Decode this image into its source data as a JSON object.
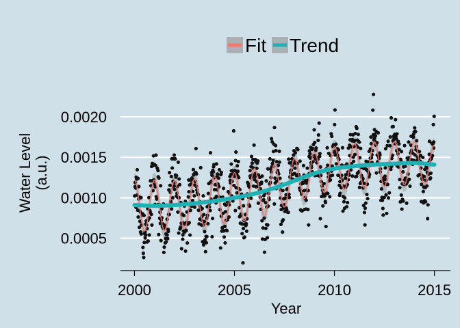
{
  "chart_data": {
    "type": "scatter",
    "xlabel": "Year",
    "ylabel_lines": [
      "Water Level",
      "(a.u.)"
    ],
    "xlim": [
      1999.3,
      2015.8
    ],
    "ylim": [
      0.0001,
      0.00243
    ],
    "xticks": [
      {
        "value": 2000,
        "label": "2000"
      },
      {
        "value": 2005,
        "label": "2005"
      },
      {
        "value": 2010,
        "label": "2010"
      },
      {
        "value": 2015,
        "label": "2015"
      }
    ],
    "yticks": [
      {
        "value": 0.0005,
        "label": "0.0005"
      },
      {
        "value": 0.001,
        "label": "0.0010"
      },
      {
        "value": 0.0015,
        "label": "0.0015"
      },
      {
        "value": 0.002,
        "label": "0.0020"
      }
    ],
    "grid": "horizontal",
    "legend": {
      "position": "top",
      "entries": [
        {
          "label": "Fit",
          "color": "#f8766d"
        },
        {
          "label": "Trend",
          "color": "#1fb1b3"
        }
      ]
    },
    "series": [
      {
        "name": "Trend",
        "color": "#1fb1b3",
        "x": [
          2000,
          2001,
          2002,
          2003,
          2004,
          2005,
          2006,
          2007,
          2008,
          2009,
          2010,
          2011,
          2012,
          2013,
          2014,
          2015
        ],
        "y": [
          0.00091,
          0.0009,
          0.00091,
          0.00093,
          0.00096,
          0.001,
          0.00105,
          0.00112,
          0.00121,
          0.0013,
          0.00136,
          0.00139,
          0.00141,
          0.00142,
          0.00143,
          0.00141
        ]
      },
      {
        "name": "Fit",
        "color": "#f8766d",
        "band_color": "#a8b0b4",
        "seasonal_amplitude": [
          0.00031,
          0.00032,
          0.0003,
          0.0003,
          0.0003,
          0.00031,
          0.00031,
          0.00029,
          0.00027,
          0.00026,
          0.00027,
          0.00028,
          0.00028,
          0.00027,
          0.00026,
          0.00024
        ],
        "seasonal_phase": 0.25,
        "band_halfwidth": 8e-05
      }
    ],
    "observations": {
      "color": "#111111",
      "per_year": 60,
      "noise_sd": 0.00019
    }
  }
}
